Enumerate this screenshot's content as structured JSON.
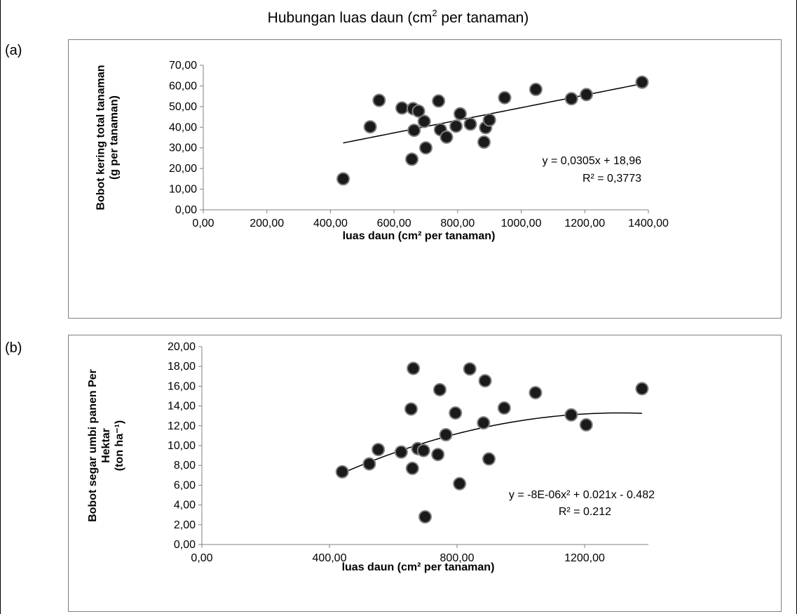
{
  "figure": {
    "title_main": "Hubungan luas daun (cm",
    "title_sup": "2",
    "title_tail": " per tanaman)"
  },
  "chart_data": [
    {
      "panel_label": "(a)",
      "type": "scatter",
      "xlabel": "luas daun (cm² per tanaman)",
      "ylabel_lines": [
        "Bobot kering total tanaman",
        "(g per tanaman)"
      ],
      "xlim": [
        0,
        1400
      ],
      "ylim": [
        0,
        70
      ],
      "x_ticks": [
        0,
        200,
        400,
        600,
        800,
        1000,
        1200,
        1400
      ],
      "x_tick_labels": [
        "0,00",
        "200,00",
        "400,00",
        "600,00",
        "800,00",
        "1000,00",
        "1200,00",
        "1400,00"
      ],
      "y_ticks": [
        0,
        10,
        20,
        30,
        40,
        50,
        60,
        70
      ],
      "y_tick_labels": [
        "0,00",
        "10,00",
        "20,00",
        "30,00",
        "40,00",
        "50,00",
        "60,00",
        "70,00"
      ],
      "points": [
        {
          "x": 440,
          "y": 15.0
        },
        {
          "x": 525,
          "y": 40.2
        },
        {
          "x": 553,
          "y": 53.0
        },
        {
          "x": 625,
          "y": 49.3
        },
        {
          "x": 656,
          "y": 24.5
        },
        {
          "x": 660,
          "y": 49.0
        },
        {
          "x": 663,
          "y": 38.5
        },
        {
          "x": 677,
          "y": 47.8
        },
        {
          "x": 695,
          "y": 42.8
        },
        {
          "x": 700,
          "y": 30.0
        },
        {
          "x": 740,
          "y": 52.7
        },
        {
          "x": 746,
          "y": 38.8
        },
        {
          "x": 765,
          "y": 35.2
        },
        {
          "x": 795,
          "y": 40.5
        },
        {
          "x": 808,
          "y": 46.5
        },
        {
          "x": 840,
          "y": 41.5
        },
        {
          "x": 883,
          "y": 32.8
        },
        {
          "x": 888,
          "y": 39.8
        },
        {
          "x": 900,
          "y": 43.5
        },
        {
          "x": 948,
          "y": 54.3
        },
        {
          "x": 1046,
          "y": 58.3
        },
        {
          "x": 1158,
          "y": 53.8
        },
        {
          "x": 1205,
          "y": 55.8
        },
        {
          "x": 1380,
          "y": 61.8
        }
      ],
      "trendline": {
        "type": "linear",
        "coef": [
          18.96,
          0.0305
        ],
        "x_range": [
          440,
          1380
        ]
      },
      "equation_text": "y = 0,0305x + 18,96",
      "r2_text": "R² = 0,3773"
    },
    {
      "panel_label": "(b)",
      "type": "scatter",
      "xlabel": "luas daun (cm² per tanaman)",
      "ylabel_lines": [
        "Bobot segar umbi panen Per",
        "Hektar",
        "(ton ha⁻¹)"
      ],
      "xlim": [
        0,
        1400
      ],
      "ylim": [
        0,
        20
      ],
      "x_ticks": [
        0,
        400,
        800,
        1200
      ],
      "x_tick_labels": [
        "0,00",
        "400,00",
        "800,00",
        "1200,00"
      ],
      "y_ticks": [
        0,
        2,
        4,
        6,
        8,
        10,
        12,
        14,
        16,
        18,
        20
      ],
      "y_tick_labels": [
        "0,00",
        "2,00",
        "4,00",
        "6,00",
        "8,00",
        "10,00",
        "12,00",
        "14,00",
        "16,00",
        "18,00",
        "20,00"
      ],
      "points": [
        {
          "x": 440,
          "y": 7.35
        },
        {
          "x": 525,
          "y": 8.15
        },
        {
          "x": 553,
          "y": 9.6
        },
        {
          "x": 625,
          "y": 9.35
        },
        {
          "x": 656,
          "y": 13.7
        },
        {
          "x": 660,
          "y": 7.7
        },
        {
          "x": 663,
          "y": 17.8
        },
        {
          "x": 677,
          "y": 9.7
        },
        {
          "x": 695,
          "y": 9.5
        },
        {
          "x": 700,
          "y": 2.8
        },
        {
          "x": 740,
          "y": 9.1
        },
        {
          "x": 746,
          "y": 15.65
        },
        {
          "x": 765,
          "y": 11.1
        },
        {
          "x": 795,
          "y": 13.3
        },
        {
          "x": 808,
          "y": 6.15
        },
        {
          "x": 840,
          "y": 17.75
        },
        {
          "x": 883,
          "y": 12.3
        },
        {
          "x": 888,
          "y": 16.55
        },
        {
          "x": 900,
          "y": 8.65
        },
        {
          "x": 948,
          "y": 13.8
        },
        {
          "x": 1046,
          "y": 15.35
        },
        {
          "x": 1158,
          "y": 13.1
        },
        {
          "x": 1205,
          "y": 12.1
        },
        {
          "x": 1380,
          "y": 15.75
        }
      ],
      "trendline": {
        "type": "poly2",
        "coef": [
          -0.482,
          0.021,
          -8e-06
        ],
        "x_range": [
          440,
          1380
        ]
      },
      "equation_text": "y = -8E-06x² + 0.021x - 0.482",
      "r2_text": "R² = 0.212"
    }
  ]
}
